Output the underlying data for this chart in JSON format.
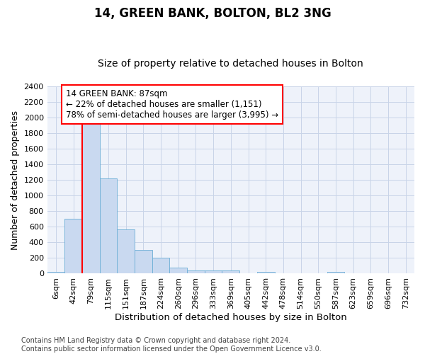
{
  "title": "14, GREEN BANK, BOLTON, BL2 3NG",
  "subtitle": "Size of property relative to detached houses in Bolton",
  "xlabel": "Distribution of detached houses by size in Bolton",
  "ylabel": "Number of detached properties",
  "categories": [
    "6sqm",
    "42sqm",
    "79sqm",
    "115sqm",
    "151sqm",
    "187sqm",
    "224sqm",
    "260sqm",
    "296sqm",
    "333sqm",
    "369sqm",
    "405sqm",
    "442sqm",
    "478sqm",
    "514sqm",
    "550sqm",
    "587sqm",
    "623sqm",
    "659sqm",
    "696sqm",
    "732sqm"
  ],
  "values": [
    20,
    700,
    1940,
    1220,
    570,
    305,
    200,
    80,
    42,
    38,
    38,
    0,
    20,
    0,
    0,
    0,
    20,
    0,
    0,
    0,
    0
  ],
  "bar_color": "#c9d9f0",
  "bar_edge_color": "#6baed6",
  "red_line_index": 2,
  "annotation_line1": "14 GREEN BANK: 87sqm",
  "annotation_line2": "← 22% of detached houses are smaller (1,151)",
  "annotation_line3": "78% of semi-detached houses are larger (3,995) →",
  "annotation_box_color": "white",
  "annotation_box_edge_color": "red",
  "ylim": [
    0,
    2400
  ],
  "yticks": [
    0,
    200,
    400,
    600,
    800,
    1000,
    1200,
    1400,
    1600,
    1800,
    2000,
    2200,
    2400
  ],
  "grid_color": "#c8d4e8",
  "bg_color": "#ffffff",
  "plot_bg_color": "#eef2fa",
  "footer": "Contains HM Land Registry data © Crown copyright and database right 2024.\nContains public sector information licensed under the Open Government Licence v3.0.",
  "title_fontsize": 12,
  "subtitle_fontsize": 10,
  "xlabel_fontsize": 9.5,
  "ylabel_fontsize": 9,
  "tick_fontsize": 8,
  "footer_fontsize": 7,
  "annot_fontsize": 8.5
}
